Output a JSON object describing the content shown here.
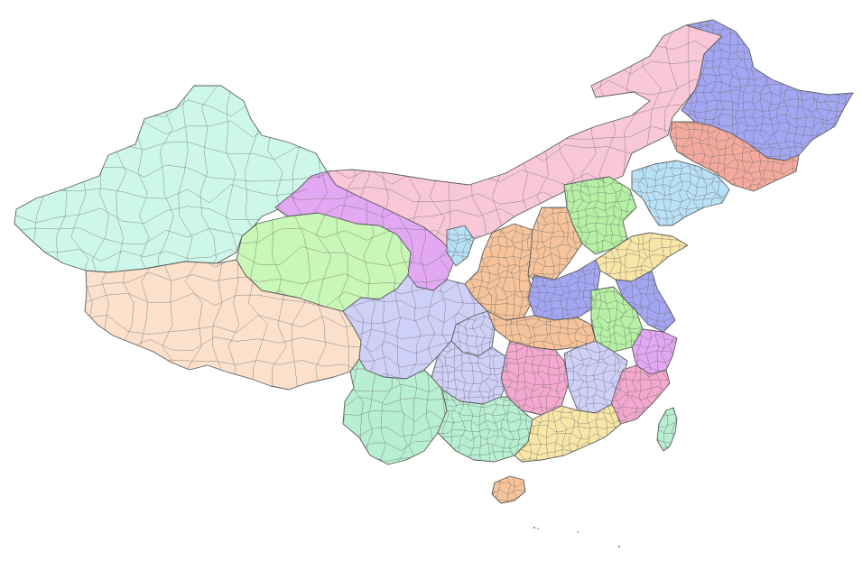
{
  "map": {
    "title": "",
    "palette": {
      "mint": "#cdf7ea",
      "peach": "#fbe0cb",
      "lightgreen": "#c9f7b8",
      "pink": "#f8c8d8",
      "violet": "#a3a6f2",
      "salmon": "#f4a99d",
      "skyblue": "#b8e0f6",
      "orchid": "#e3a8f3",
      "lavender": "#cfd0f8",
      "apricot": "#f6c39a",
      "khaki": "#f8e6a6",
      "seafoam": "#b8eed2",
      "green": "#b5f0a4",
      "rose": "#f4a7cf"
    },
    "regions": [
      {
        "name": "xinjiang",
        "color": "mint"
      },
      {
        "name": "tibet",
        "color": "peach"
      },
      {
        "name": "qinghai",
        "color": "lightgreen"
      },
      {
        "name": "gansu",
        "color": "orchid"
      },
      {
        "name": "inner-mongolia",
        "color": "pink"
      },
      {
        "name": "heilongjiang",
        "color": "violet"
      },
      {
        "name": "jilin",
        "color": "salmon"
      },
      {
        "name": "liaoning",
        "color": "skyblue"
      },
      {
        "name": "sichuan",
        "color": "lavender"
      },
      {
        "name": "yunnan",
        "color": "seafoam"
      },
      {
        "name": "guangxi",
        "color": "seafoam"
      },
      {
        "name": "guangdong",
        "color": "khaki"
      },
      {
        "name": "fujian",
        "color": "rose"
      },
      {
        "name": "taiwan",
        "color": "seafoam"
      },
      {
        "name": "hainan",
        "color": "apricot"
      },
      {
        "name": "shandong",
        "color": "khaki"
      },
      {
        "name": "henan",
        "color": "violet"
      },
      {
        "name": "anhui",
        "color": "green"
      },
      {
        "name": "hubei",
        "color": "apricot"
      },
      {
        "name": "hunan",
        "color": "rose"
      },
      {
        "name": "jiangxi",
        "color": "lavender"
      },
      {
        "name": "guizhou",
        "color": "lavender"
      },
      {
        "name": "chongqing",
        "color": "lavender"
      },
      {
        "name": "shaanxi",
        "color": "apricot"
      },
      {
        "name": "shanxi",
        "color": "apricot"
      },
      {
        "name": "hebei",
        "color": "green"
      },
      {
        "name": "ningxia",
        "color": "skyblue"
      },
      {
        "name": "zhejiang",
        "color": "orchid"
      },
      {
        "name": "jiangsu",
        "color": "violet"
      }
    ]
  }
}
